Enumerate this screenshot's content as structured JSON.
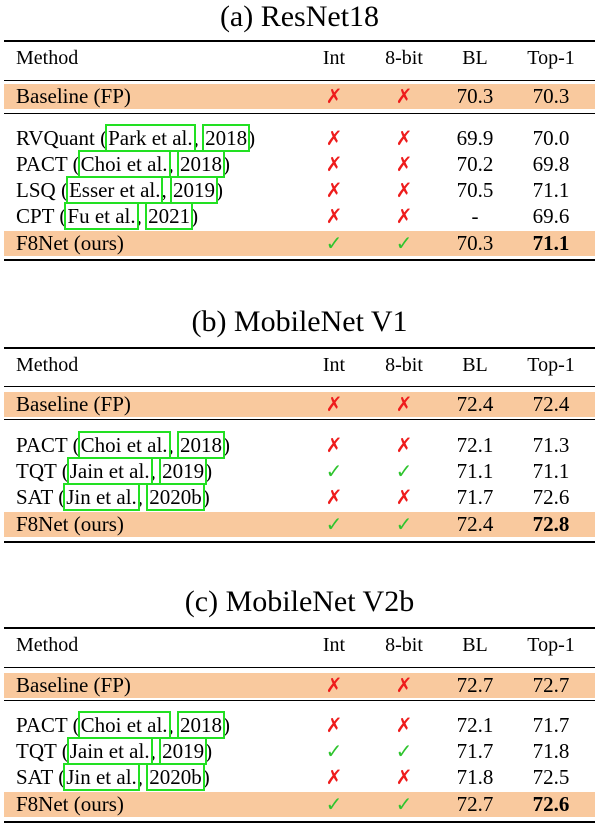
{
  "colors": {
    "highlight": "#f9c99e",
    "cross": "#ee1c1c",
    "check": "#2ec42e",
    "citation_box": "#22e022"
  },
  "sections": [
    {
      "title": "(a) ResNet18",
      "headers": [
        "Method",
        "Int",
        "8-bit",
        "BL",
        "Top-1"
      ],
      "baseline": {
        "method": "Baseline (FP)",
        "int": "✗",
        "bit8": "✗",
        "bl": "70.3",
        "top1": "70.3"
      },
      "rows": [
        {
          "name": "RVQuant",
          "open": "(",
          "author": "Park et al.",
          "year": "2018",
          "close": ")",
          "int": "✗",
          "bit8": "✗",
          "bl": "69.9",
          "top1": "70.0"
        },
        {
          "name": "PACT",
          "open": "(",
          "author": "Choi et al.",
          "year": "2018",
          "close": ")",
          "int": "✗",
          "bit8": "✗",
          "bl": "70.2",
          "top1": "69.8"
        },
        {
          "name": "LSQ",
          "open": "(",
          "author": "Esser et al.",
          "year": "2019",
          "close": ")",
          "int": "✗",
          "bit8": "✗",
          "bl": "70.5",
          "top1": "71.1"
        },
        {
          "name": "CPT",
          "open": "(",
          "author": "Fu et al.",
          "year": "2021",
          "close": ")",
          "int": "✗",
          "bit8": "✗",
          "bl": "-",
          "top1": "69.6"
        }
      ],
      "ours": {
        "method": "F8Net (ours)",
        "int": "✓",
        "bit8": "✓",
        "bl": "70.3",
        "top1": "71.1"
      }
    },
    {
      "title": "(b) MobileNet V1",
      "headers": [
        "Method",
        "Int",
        "8-bit",
        "BL",
        "Top-1"
      ],
      "baseline": {
        "method": "Baseline (FP)",
        "int": "✗",
        "bit8": "✗",
        "bl": "72.4",
        "top1": "72.4"
      },
      "rows": [
        {
          "name": "PACT",
          "open": "(",
          "author": "Choi et al.",
          "year": "2018",
          "close": ")",
          "int": "✗",
          "bit8": "✗",
          "bl": "72.1",
          "top1": "71.3"
        },
        {
          "name": "TQT",
          "open": "(",
          "author": "Jain et al.",
          "year": "2019",
          "close": ")",
          "int": "✓",
          "bit8": "✓",
          "bl": "71.1",
          "top1": "71.1"
        },
        {
          "name": "SAT",
          "open": "(",
          "author": "Jin et al.",
          "year": "2020b",
          "close": ")",
          "int": "✗",
          "bit8": "✗",
          "bl": "71.7",
          "top1": "72.6"
        }
      ],
      "ours": {
        "method": "F8Net (ours)",
        "int": "✓",
        "bit8": "✓",
        "bl": "72.4",
        "top1": "72.8"
      }
    },
    {
      "title": "(c) MobileNet V2b",
      "headers": [
        "Method",
        "Int",
        "8-bit",
        "BL",
        "Top-1"
      ],
      "baseline": {
        "method": "Baseline (FP)",
        "int": "✗",
        "bit8": "✗",
        "bl": "72.7",
        "top1": "72.7"
      },
      "rows": [
        {
          "name": "PACT",
          "open": "(",
          "author": "Choi et al.",
          "year": "2018",
          "close": ")",
          "int": "✗",
          "bit8": "✗",
          "bl": "72.1",
          "top1": "71.7"
        },
        {
          "name": "TQT",
          "open": "(",
          "author": "Jain et al.",
          "year": "2019",
          "close": ")",
          "int": "✓",
          "bit8": "✓",
          "bl": "71.7",
          "top1": "71.8"
        },
        {
          "name": "SAT",
          "open": "(",
          "author": "Jin et al.",
          "year": "2020b",
          "close": ")",
          "int": "✗",
          "bit8": "✗",
          "bl": "71.8",
          "top1": "72.5"
        }
      ],
      "ours": {
        "method": "F8Net (ours)",
        "int": "✓",
        "bit8": "✓",
        "bl": "72.7",
        "top1": "72.6"
      }
    }
  ]
}
